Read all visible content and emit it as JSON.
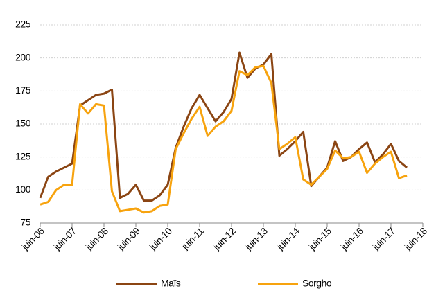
{
  "chart_data": {
    "type": "line",
    "categories": [
      "juin-06",
      null,
      null,
      null,
      "juin-07",
      null,
      null,
      null,
      "juin-08",
      null,
      null,
      null,
      "juin-09",
      null,
      null,
      null,
      "juin-10",
      null,
      null,
      null,
      "juin-11",
      null,
      null,
      null,
      "juin-12",
      null,
      null,
      null,
      "juin-13",
      null,
      null,
      null,
      "juin-14",
      null,
      null,
      null,
      "juin-15",
      null,
      null,
      null,
      "juin-16",
      null,
      null,
      null,
      "juin-17",
      null,
      null,
      null,
      "juin-18"
    ],
    "series": [
      {
        "name": "Maïs",
        "color": "#8b4513",
        "values": [
          94,
          110,
          114,
          117,
          120,
          164,
          168,
          172,
          173,
          176,
          94,
          97,
          104,
          92,
          92,
          96,
          104,
          132,
          148,
          162,
          172,
          162,
          152,
          159,
          169,
          204,
          185,
          192,
          195,
          203,
          126,
          131,
          137,
          144,
          103,
          110,
          117,
          137,
          122,
          125,
          131,
          136,
          121,
          127,
          135,
          122,
          117,
          null,
          null
        ]
      },
      {
        "name": "Sorgho",
        "color": "#f7a30e",
        "values": [
          89,
          91,
          100,
          104,
          104,
          165,
          158,
          165,
          164,
          99,
          84,
          85,
          86,
          83,
          84,
          88,
          89,
          131,
          143,
          154,
          163,
          141,
          148,
          152,
          160,
          190,
          187,
          193,
          194,
          181,
          131,
          135,
          140,
          108,
          104,
          110,
          116,
          130,
          124,
          125,
          129,
          113,
          120,
          125,
          129,
          109,
          111,
          null,
          null
        ]
      }
    ],
    "ylim": [
      75,
      225
    ],
    "yticks": [
      75,
      100,
      125,
      150,
      175,
      200,
      225
    ],
    "grid": true,
    "legend": "bottom"
  }
}
